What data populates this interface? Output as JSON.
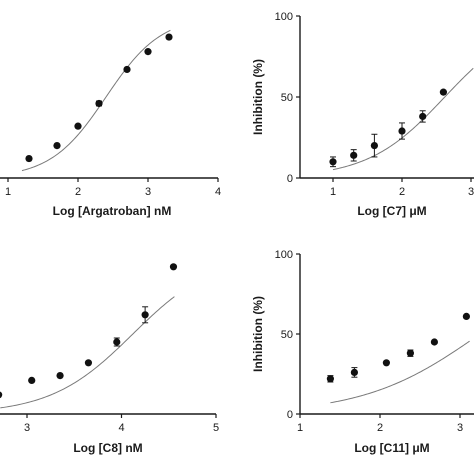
{
  "chart_data": [
    {
      "type": "scatter",
      "xlabel": "Log [Argatroban] nM",
      "ylabel": "",
      "xlim": [
        0,
        4
      ],
      "ylim": [
        0,
        100
      ],
      "xticks": [
        "1",
        "2",
        "3",
        "4"
      ],
      "yticks": [],
      "series": [
        {
          "x": [
            1.3,
            1.7,
            2.0,
            2.3,
            2.7,
            3.0,
            3.3
          ],
          "y": [
            12,
            20,
            32,
            46,
            67,
            78,
            87
          ],
          "err": [
            0,
            0,
            0,
            1.5,
            0,
            0,
            0
          ]
        }
      ],
      "fit": {
        "type": "sigmoid",
        "top": 100,
        "bottom": 0,
        "logIC50": 2.4,
        "hill": 1.1
      }
    },
    {
      "type": "scatter",
      "xlabel": "Log [C7] μM",
      "ylabel": "Inhibition (%)",
      "xlim": [
        0,
        3.1
      ],
      "ylim": [
        0,
        100
      ],
      "xticks": [
        "1",
        "2",
        "3"
      ],
      "yticks": [
        "0",
        "50",
        "100"
      ],
      "series": [
        {
          "x": [
            1.0,
            1.3,
            1.6,
            2.0,
            2.3,
            2.6
          ],
          "y": [
            10,
            14,
            20,
            29,
            38,
            53
          ],
          "err": [
            3,
            3.5,
            7,
            5,
            3.5,
            0
          ]
        }
      ],
      "fit": {
        "type": "sigmoid",
        "top": 100,
        "bottom": 0,
        "logIC50": 2.62,
        "hill": 0.78
      }
    },
    {
      "type": "scatter",
      "xlabel": "Log [C8] nM",
      "ylabel": "",
      "xlim": [
        2.7,
        5
      ],
      "ylim": [
        0,
        100
      ],
      "xticks": [
        "3",
        "4",
        "5"
      ],
      "yticks": [],
      "series": [
        {
          "x": [
            2.7,
            3.05,
            3.35,
            3.65,
            3.95,
            4.25,
            4.55
          ],
          "y": [
            12,
            21,
            24,
            32,
            45,
            62,
            92
          ],
          "err": [
            0,
            0,
            0,
            0,
            2.5,
            5,
            0
          ]
        }
      ],
      "fit": {
        "type": "sigmoid",
        "top": 100,
        "bottom": 0,
        "logIC50": 4.12,
        "hill": 1.0
      }
    },
    {
      "type": "scatter",
      "xlabel": "Log [C11] μM",
      "ylabel": "Inhibition (%)",
      "xlim": [
        1,
        3.1
      ],
      "ylim": [
        0,
        100
      ],
      "xticks": [
        "1",
        "2",
        "3"
      ],
      "yticks": [
        "0",
        "50",
        "100"
      ],
      "series": [
        {
          "x": [
            1.38,
            1.68,
            2.08,
            2.38,
            2.68,
            3.08
          ],
          "y": [
            22,
            26,
            32,
            38,
            45,
            61
          ],
          "err": [
            2,
            3,
            0,
            2,
            0,
            0
          ]
        }
      ],
      "fit": {
        "type": "sigmoid",
        "top": 100,
        "bottom": 0,
        "logIC50": 3.25,
        "hill": 0.6
      }
    }
  ]
}
